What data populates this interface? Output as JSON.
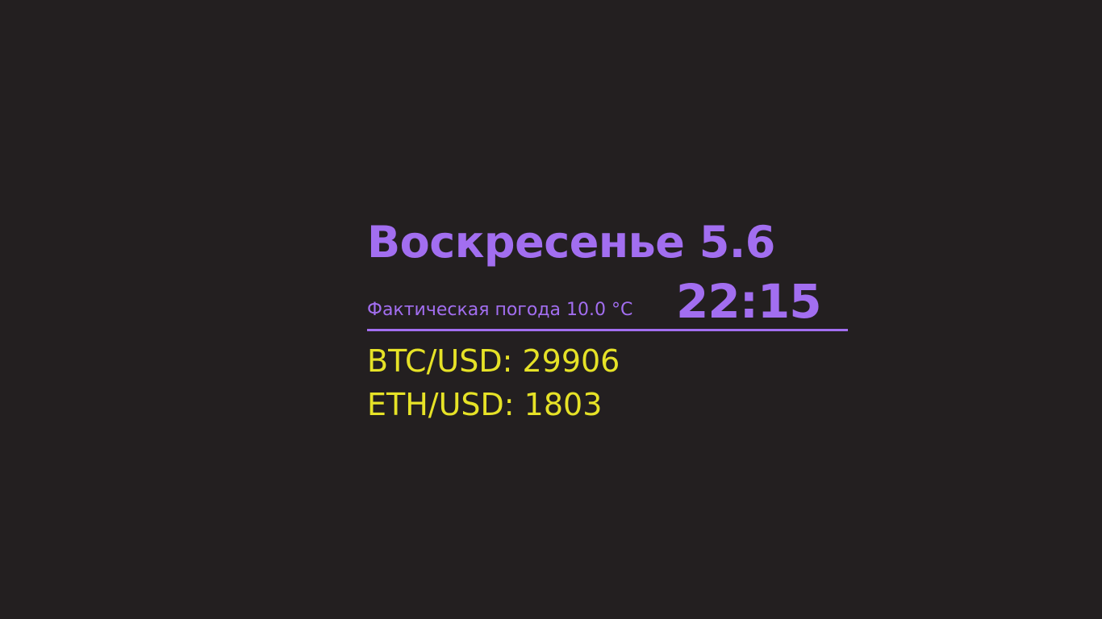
{
  "header": {
    "day_date": "Воскресенье 5.6"
  },
  "weather": {
    "label": "Фактическая погода 10.0 °C"
  },
  "clock": {
    "time": "22:15"
  },
  "rates": [
    {
      "label": "BTC/USD: 29906"
    },
    {
      "label": "ETH/USD: 1803"
    }
  ],
  "colors": {
    "background": "#231f20",
    "accent": "#a26ef0",
    "rates": "#e6e227"
  }
}
